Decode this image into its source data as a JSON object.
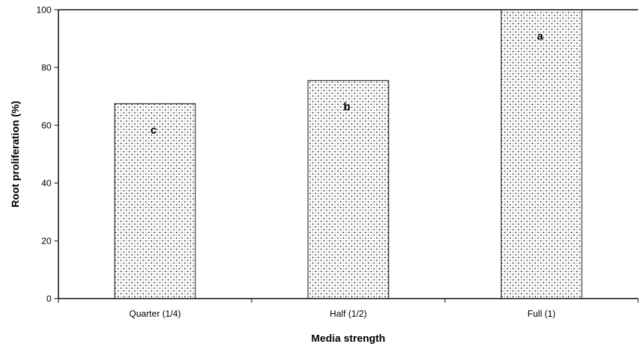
{
  "chart_data": {
    "type": "bar",
    "title": "",
    "xlabel": "Media strength",
    "ylabel": "Root proliferation (%)",
    "categories": [
      "Quarter (1/4)",
      "Half (1/2)",
      "Full (1)"
    ],
    "values": [
      67.5,
      75.5,
      100
    ],
    "data_labels": [
      "c",
      "b",
      "a"
    ],
    "ylim": [
      0,
      100
    ],
    "yticks": [
      0,
      20,
      40,
      60,
      80,
      100
    ],
    "ytick_labels": [
      "0",
      "20",
      "40",
      "60",
      "80",
      "100"
    ],
    "grid": false,
    "legend": "none",
    "bar_pattern": "dotted crosshatch",
    "bar_fill_color": "#ffffff",
    "bar_stroke_color": "#000000"
  }
}
